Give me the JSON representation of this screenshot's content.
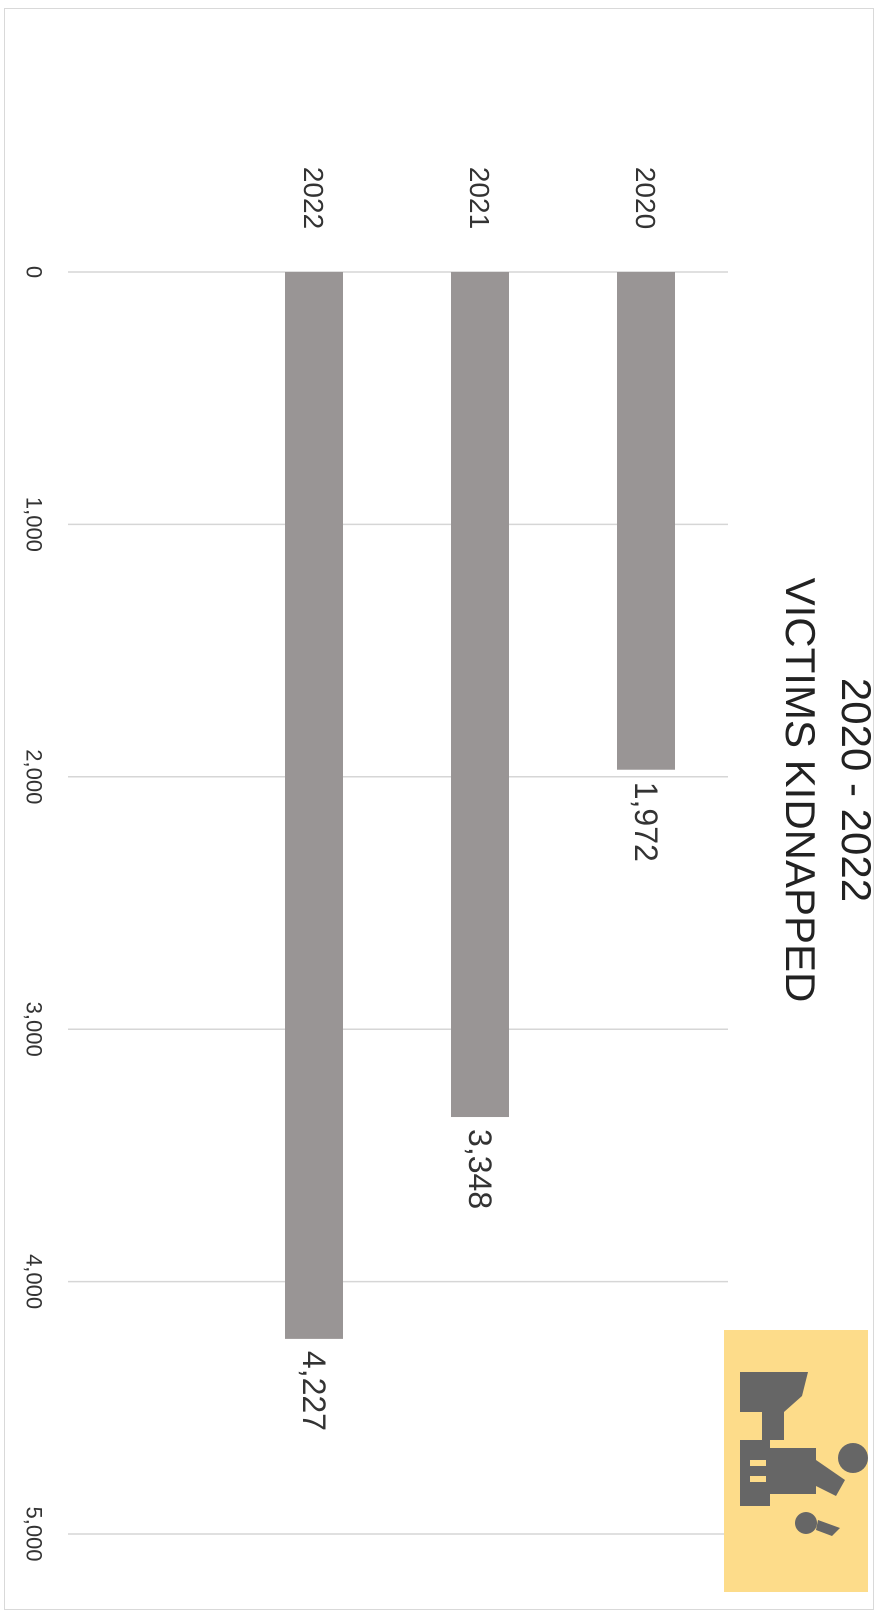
{
  "chart_data": {
    "type": "bar",
    "orientation": "horizontal (figure rotated 90° clockwise)",
    "title_lines": [
      "2020 - 2022",
      "VICTIMS KIDNAPPED"
    ],
    "categories": [
      "2020",
      "2021",
      "2022"
    ],
    "values": [
      1972,
      3348,
      4227
    ],
    "value_labels": [
      "1,972",
      "3,348",
      "4,227"
    ],
    "ticks": [
      0,
      1000,
      2000,
      3000,
      4000,
      5000
    ],
    "tick_labels": [
      "0",
      "1,000",
      "2,000",
      "3,000",
      "4,000",
      "5,000"
    ],
    "xlim": [
      0,
      5000
    ],
    "grid": true,
    "legend": "none",
    "colors": {
      "bar": "#999595",
      "grid": "#d6d6d6",
      "logo_bg": "#fddc8a",
      "logo_fg": "#666666"
    }
  }
}
